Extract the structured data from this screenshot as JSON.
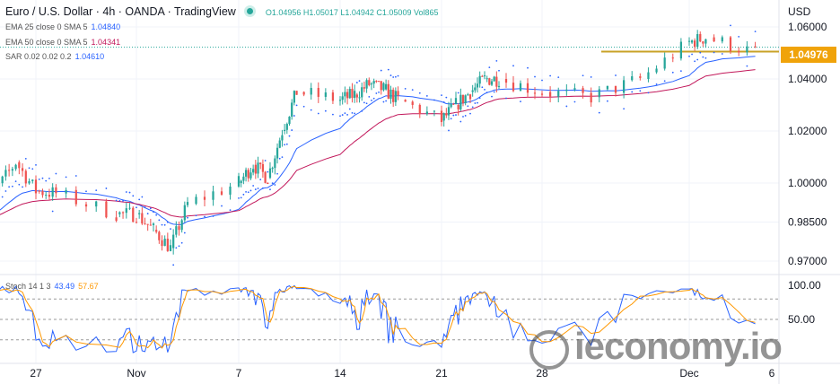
{
  "header": {
    "title": "Euro / U.S. Dollar · 4h · OANDA · TradingView",
    "ohlc": "O1.04956 H1.05017 L1.04942 C1.05009 Vol865"
  },
  "indicators": [
    {
      "label": "EMA 25 close 0 SMA 5",
      "value": "1.04840",
      "color": "#2962ff"
    },
    {
      "label": "EMA 50 close 0 SMA 5",
      "value": "1.04341",
      "color": "#c2185b"
    },
    {
      "label": "SAR 0.02 0.02 0.2",
      "value": "1.04610",
      "color": "#2962ff"
    }
  ],
  "stoch": {
    "label": "Stoch 14 1 3",
    "k": "43.49",
    "d": "57.67",
    "k_color": "#2962ff",
    "d_color": "#ff9800"
  },
  "currency": "USD",
  "current_price": "1.04976",
  "watermark": "ieconomy.io",
  "chart_data": {
    "type": "candlestick",
    "price_ticks": [
      "1.06000",
      "1.04000",
      "1.02000",
      "1.00000",
      "0.98500",
      "0.97000"
    ],
    "stoch_ticks": [
      "100.00",
      "50.00"
    ],
    "x_ticks": [
      "27",
      "Nov",
      "7",
      "14",
      "21",
      "28",
      "Dec",
      "6"
    ],
    "ylim": [
      0.967,
      1.065
    ],
    "horizontal_level": 1.0505,
    "daily_closes": [
      {
        "date": "2022-10-24",
        "close": 0.987
      },
      {
        "date": "2022-10-25",
        "close": 0.997
      },
      {
        "date": "2022-10-26",
        "close": 1.008
      },
      {
        "date": "2022-10-27",
        "close": 0.997
      },
      {
        "date": "2022-10-28",
        "close": 0.996
      },
      {
        "date": "2022-10-31",
        "close": 0.988
      },
      {
        "date": "2022-11-01",
        "close": 0.988
      },
      {
        "date": "2022-11-02",
        "close": 0.982
      },
      {
        "date": "2022-11-03",
        "close": 0.975
      },
      {
        "date": "2022-11-04",
        "close": 0.992
      },
      {
        "date": "2022-11-07",
        "close": 1.0
      },
      {
        "date": "2022-11-08",
        "close": 1.007
      },
      {
        "date": "2022-11-09",
        "close": 1.002
      },
      {
        "date": "2022-11-10",
        "close": 1.02
      },
      {
        "date": "2022-11-11",
        "close": 1.035
      },
      {
        "date": "2022-11-14",
        "close": 1.032
      },
      {
        "date": "2022-11-15",
        "close": 1.034
      },
      {
        "date": "2022-11-16",
        "close": 1.038
      },
      {
        "date": "2022-11-17",
        "close": 1.036
      },
      {
        "date": "2022-11-18",
        "close": 1.032
      },
      {
        "date": "2022-11-21",
        "close": 1.024
      },
      {
        "date": "2022-11-22",
        "close": 1.03
      },
      {
        "date": "2022-11-23",
        "close": 1.035
      },
      {
        "date": "2022-11-24",
        "close": 1.04
      },
      {
        "date": "2022-11-25",
        "close": 1.04
      },
      {
        "date": "2022-11-28",
        "close": 1.035
      },
      {
        "date": "2022-11-29",
        "close": 1.033
      },
      {
        "date": "2022-11-30",
        "close": 1.04
      },
      {
        "date": "2022-12-01",
        "close": 1.054
      },
      {
        "date": "2022-12-02",
        "close": 1.056
      },
      {
        "date": "2022-12-05",
        "close": 1.05
      }
    ],
    "colors": {
      "up": "#26a69a",
      "down": "#ef5350",
      "level": "#c9a227"
    }
  }
}
